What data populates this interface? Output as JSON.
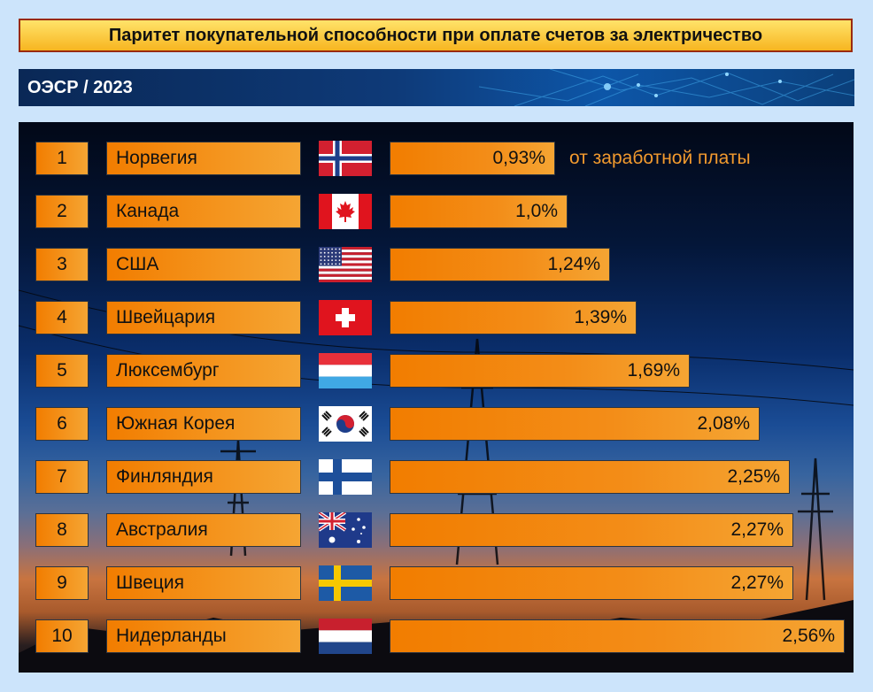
{
  "header": {
    "title": "Паритет покупательной способности при оплате счетов за электричество",
    "subtitle": "ОЭСР / 2023"
  },
  "chart_data": {
    "type": "bar",
    "orientation": "horizontal",
    "title": "Паритет покупательной способности при оплате счетов за электричество",
    "subtitle": "ОЭСР / 2023",
    "annotation": "от заработной платы",
    "unit": "%",
    "ranks": [
      "1",
      "2",
      "3",
      "4",
      "5",
      "6",
      "7",
      "8",
      "9",
      "10"
    ],
    "categories": [
      "Норвегия",
      "Канада",
      "США",
      "Швейцария",
      "Люксембург",
      "Южная Корея",
      "Финляндия",
      "Австралия",
      "Швеция",
      "Нидерланды"
    ],
    "flags": [
      "norway-flag",
      "canada-flag",
      "usa-flag",
      "switzerland-flag",
      "luxembourg-flag",
      "south-korea-flag",
      "finland-flag",
      "australia-flag",
      "sweden-flag",
      "netherlands-flag"
    ],
    "values": [
      0.93,
      1.0,
      1.24,
      1.39,
      1.69,
      2.08,
      2.25,
      2.27,
      2.27,
      2.56
    ],
    "labels": [
      "0,93%",
      "1,0%",
      "1,24%",
      "1,39%",
      "1,69%",
      "2,08%",
      "2,25%",
      "2,27%",
      "2,27%",
      "2,56%"
    ],
    "xlim": [
      0,
      2.56
    ]
  },
  "colors": {
    "bar": "#f27d00",
    "bar_light": "#f5a533",
    "annotation": "#f29a2e",
    "title_border": "#9a2a10"
  }
}
